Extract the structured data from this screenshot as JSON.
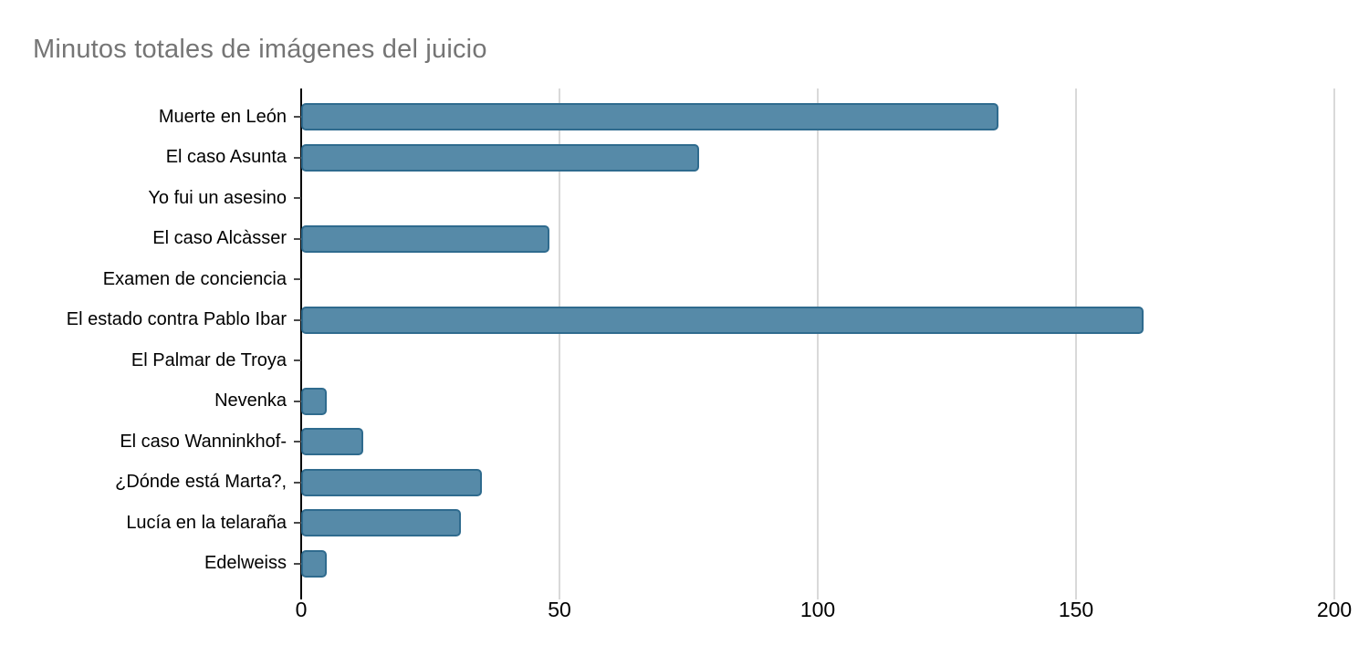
{
  "title": "Minutos totales de imágenes del juicio",
  "colors": {
    "bar_fill": "#568aa8",
    "bar_border": "#2f6b8e",
    "gridline": "#d9d9d9",
    "axis": "#000000",
    "title_text": "#757575",
    "label_text": "#000000"
  },
  "chart_data": {
    "type": "bar",
    "orientation": "horizontal",
    "title": "Minutos totales de imágenes del juicio",
    "categories": [
      "Muerte en León",
      "El caso Asunta",
      "Yo fui un asesino",
      "El caso Alcàsser",
      "Examen de conciencia",
      "El estado contra Pablo Ibar",
      "El Palmar de Troya",
      "Nevenka",
      "El caso Wanninkhof-",
      "¿Dónde está Marta?,",
      "Lucía en la telaraña",
      "Edelweiss"
    ],
    "values": [
      135,
      77,
      0,
      48,
      0,
      163,
      0,
      5,
      12,
      35,
      31,
      5
    ],
    "xlabel": "",
    "ylabel": "",
    "xlim": [
      0,
      200
    ],
    "x_ticks": [
      0,
      50,
      100,
      150,
      200
    ],
    "grid": true,
    "legend": "none"
  }
}
